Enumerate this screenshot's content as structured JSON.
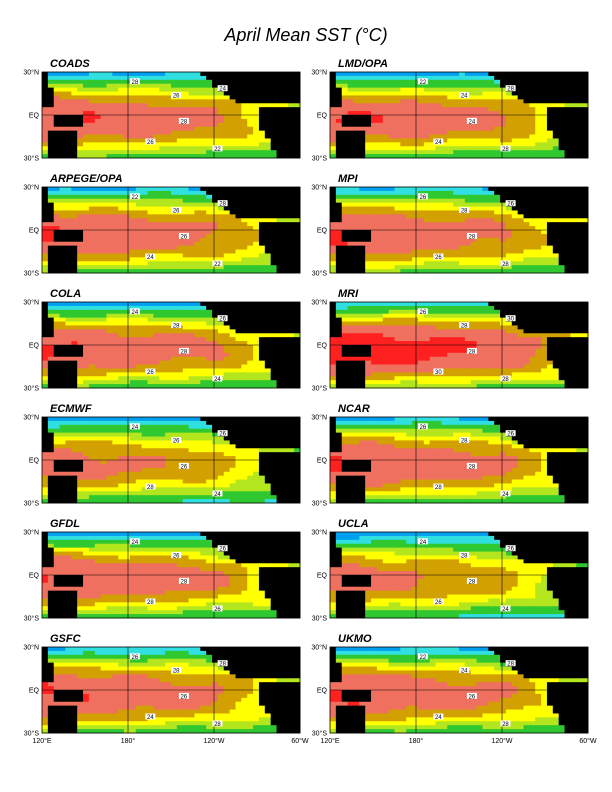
{
  "title": "April Mean SST (°C)",
  "chart_data": {
    "type": "heatmap",
    "title": "April Mean SST (°C)",
    "variable": "Sea Surface Temperature",
    "unit": "°C",
    "month": "April",
    "x_ticks": [
      "120°E",
      "180°",
      "120°W",
      "60°W"
    ],
    "y_ticks": [
      "30°N",
      "EQ",
      "30°S"
    ],
    "xlim_deg_east": [
      120,
      300
    ],
    "ylim_deg_north": [
      -30,
      30
    ],
    "contour_interval": 1,
    "colors": {
      "cold": "#2000c8",
      "cool": "#00a0f0",
      "cyan": "#30e0e0",
      "green": "#30c830",
      "lightgreen": "#b4e61e",
      "yellow": "#ffff00",
      "gold": "#d2a000",
      "salmon": "#f07060",
      "red": "#ff2020",
      "land": "#000000",
      "missing": "#ffffff"
    },
    "panels": [
      {
        "name": "COADS",
        "contour_labels": [
          "28",
          "26",
          "24",
          "28",
          "26",
          "22"
        ]
      },
      {
        "name": "LMD/OPA",
        "contour_labels": [
          "22",
          "24",
          "28",
          "24",
          "24",
          "28"
        ]
      },
      {
        "name": "ARPEGE/OPA",
        "contour_labels": [
          "22",
          "26",
          "28",
          "26",
          "24",
          "22"
        ]
      },
      {
        "name": "MPI",
        "contour_labels": [
          "26",
          "28",
          "26",
          "28",
          "26",
          "28"
        ]
      },
      {
        "name": "COLA",
        "contour_labels": [
          "24",
          "28",
          "26",
          "28",
          "26",
          "24"
        ]
      },
      {
        "name": "MRI",
        "contour_labels": [
          "26",
          "28",
          "30",
          "28",
          "30",
          "28"
        ]
      },
      {
        "name": "ECMWF",
        "contour_labels": [
          "24",
          "26",
          "26",
          "26",
          "28",
          "24"
        ]
      },
      {
        "name": "NCAR",
        "contour_labels": [
          "26",
          "28",
          "26",
          "28",
          "28",
          "24"
        ]
      },
      {
        "name": "GFDL",
        "contour_labels": [
          "24",
          "26",
          "26",
          "28",
          "28",
          "26"
        ]
      },
      {
        "name": "UCLA",
        "contour_labels": [
          "24",
          "28",
          "26",
          "28",
          "26",
          "24"
        ]
      },
      {
        "name": "GSFC",
        "contour_labels": [
          "26",
          "28",
          "28",
          "26",
          "24",
          "28"
        ]
      },
      {
        "name": "UKMO",
        "contour_labels": [
          "22",
          "24",
          "28",
          "26",
          "24",
          "28"
        ]
      }
    ]
  }
}
